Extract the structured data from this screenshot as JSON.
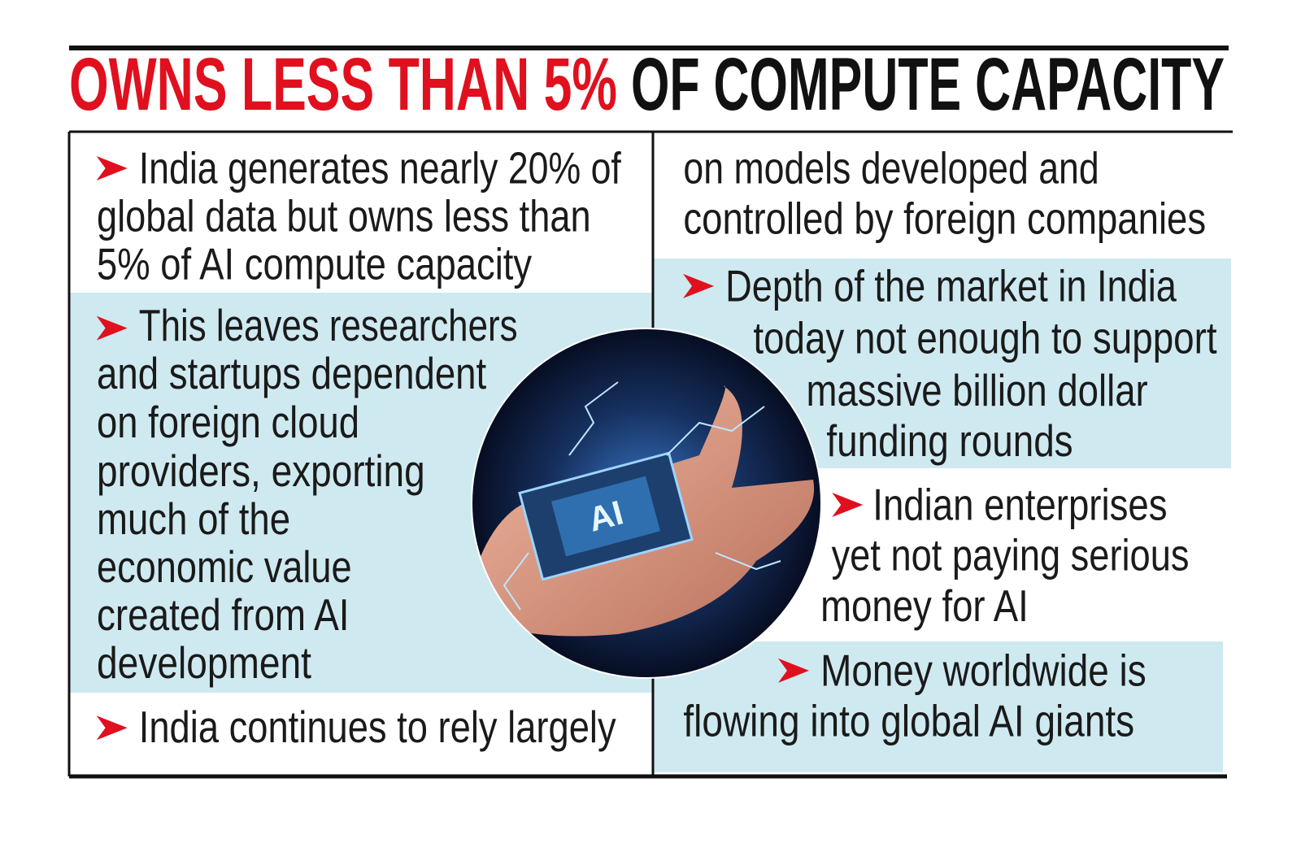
{
  "title": {
    "highlight": "OWNS LESS THAN 5%",
    "rest": "OF COMPUTE CAPACITY"
  },
  "left_column": [
    [
      "India generates nearly 20% of",
      "global data but owns less than",
      "5% of AI compute capacity"
    ],
    [
      "This leaves researchers",
      "and startups dependent",
      "on foreign cloud",
      "providers, exporting",
      "much of the",
      "economic value",
      "created from AI",
      "development"
    ],
    [
      "India continues to rely largely"
    ]
  ],
  "right_column": [
    [
      "on models developed and",
      "controlled by foreign companies"
    ],
    [
      "Depth of the market in India",
      "today not enough to support",
      "massive billion dollar",
      "funding rounds"
    ],
    [
      "Indian enterprises",
      "yet not paying serious",
      "money for AI"
    ],
    [
      "Money worldwide is",
      "flowing into global AI giants"
    ]
  ],
  "illustration": {
    "chip_label": "AI"
  }
}
